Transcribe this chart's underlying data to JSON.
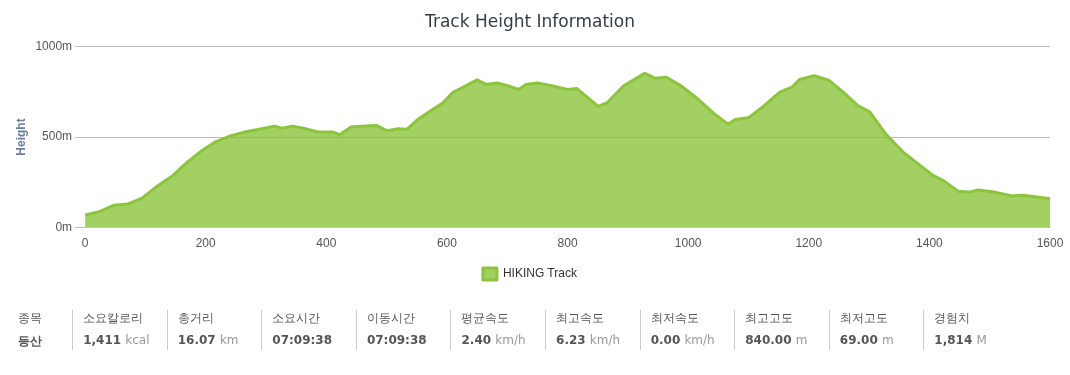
{
  "chart_data": [
    {
      "type": "area",
      "title": "Track Height Information",
      "ylabel": "Height",
      "legend": "bottom",
      "grid": "y",
      "marker": "none",
      "xlim": [
        0,
        1600
      ],
      "xticks": [
        0,
        200,
        400,
        600,
        800,
        1000,
        1200,
        1400,
        1600
      ],
      "ylim": [
        0,
        1000
      ],
      "yticks": [
        {
          "value": 0,
          "label": "0m"
        },
        {
          "value": 500,
          "label": "500m"
        },
        {
          "value": 1000,
          "label": "1000m"
        }
      ],
      "series": [
        {
          "name": "HIKING Track",
          "color": "#8cc43c",
          "x": [
            0,
            23,
            47,
            71,
            96,
            120,
            144,
            168,
            192,
            217,
            241,
            265,
            289,
            314,
            326,
            344,
            362,
            386,
            410,
            422,
            441,
            459,
            483,
            501,
            519,
            534,
            550,
            568,
            593,
            610,
            628,
            650,
            665,
            683,
            701,
            719,
            731,
            750,
            774,
            800,
            815,
            851,
            866,
            893,
            928,
            946,
            964,
            988,
            1012,
            1042,
            1066,
            1078,
            1101,
            1125,
            1152,
            1173,
            1185,
            1209,
            1233,
            1257,
            1281,
            1301,
            1328,
            1358,
            1382,
            1406,
            1424,
            1448,
            1466,
            1481,
            1507,
            1537,
            1555,
            1579,
            1600
          ],
          "values": [
            70,
            87,
            123,
            130,
            166,
            230,
            283,
            357,
            421,
            475,
            506,
            528,
            543,
            560,
            549,
            560,
            549,
            528,
            528,
            513,
            555,
            560,
            564,
            534,
            545,
            543,
            592,
            634,
            687,
            747,
            777,
            815,
            790,
            798,
            783,
            762,
            790,
            798,
            783,
            762,
            768,
            669,
            690,
            783,
            851,
            824,
            830,
            783,
            721,
            632,
            571,
            597,
            608,
            670,
            748,
            777,
            818,
            838,
            814,
            748,
            674,
            639,
            515,
            412,
            350,
            288,
            258,
            200,
            196,
            208,
            196,
            175,
            179,
            169,
            159
          ]
        }
      ]
    },
    {
      "type": "other",
      "categories": [
        "종목",
        "소요칼로리",
        "총거리",
        "소요시간",
        "이동시간",
        "평균속도",
        "최고속도",
        "최저속도",
        "최고고도",
        "최저고도",
        "경험치"
      ],
      "value_labels": [
        "등산",
        "1,411 kcal",
        "16.07 km",
        "07:09:38",
        "07:09:38",
        "2.40 km/h",
        "6.23 km/h",
        "0.00 km/h",
        "840.00 m",
        "69.00 m",
        "1,814 M"
      ]
    }
  ]
}
